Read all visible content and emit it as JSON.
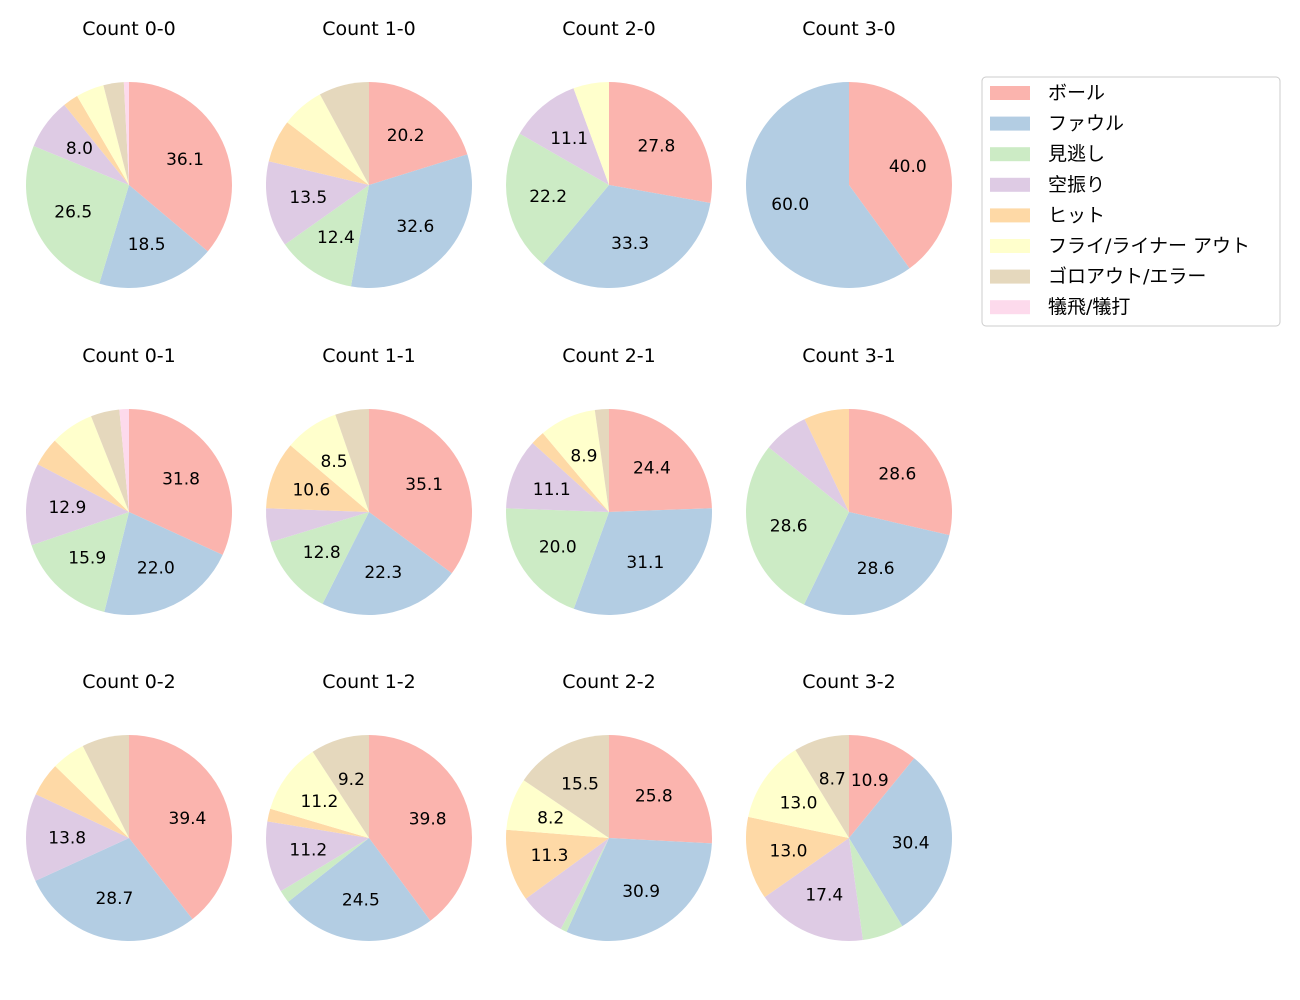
{
  "chart_data": {
    "type": "pie",
    "legend_position": "top-right",
    "label_format": "percent, one decimal, shown for slices of 8% or more",
    "start_angle": 90,
    "direction": "clockwise",
    "categories": [
      "ボール",
      "ファウル",
      "見逃し",
      "空振り",
      "ヒット",
      "フライ/ライナー アウト",
      "ゴロアウト/エラー",
      "犠飛/犠打"
    ],
    "colors": [
      "#fbb4ae",
      "#b3cde3",
      "#ccebc5",
      "#decbe4",
      "#fed9a6",
      "#ffffcc",
      "#e5d8bd",
      "#fddaec"
    ],
    "pies": [
      {
        "title": "Count 0-0",
        "values": [
          36.1,
          18.5,
          26.5,
          8.0,
          2.4,
          4.4,
          3.2,
          0.8
        ]
      },
      {
        "title": "Count 1-0",
        "values": [
          20.2,
          32.6,
          12.4,
          13.5,
          6.7,
          6.7,
          7.9,
          0
        ]
      },
      {
        "title": "Count 2-0",
        "values": [
          27.8,
          33.3,
          22.2,
          11.1,
          0,
          5.6,
          0,
          0
        ]
      },
      {
        "title": "Count 3-0",
        "values": [
          40.0,
          60.0,
          0,
          0,
          0,
          0,
          0,
          0
        ]
      },
      {
        "title": "Count 0-1",
        "values": [
          31.8,
          22.0,
          15.9,
          12.9,
          4.5,
          6.8,
          4.5,
          1.5
        ]
      },
      {
        "title": "Count 1-1",
        "values": [
          35.1,
          22.3,
          12.8,
          5.3,
          10.6,
          8.5,
          5.3,
          0
        ]
      },
      {
        "title": "Count 2-1",
        "values": [
          24.4,
          31.1,
          20.0,
          11.1,
          2.2,
          8.9,
          2.2,
          0
        ]
      },
      {
        "title": "Count 3-1",
        "values": [
          28.6,
          28.6,
          28.6,
          7.1,
          7.1,
          0,
          0,
          0
        ]
      },
      {
        "title": "Count 0-2",
        "values": [
          39.4,
          28.7,
          0,
          13.8,
          5.3,
          5.3,
          7.4,
          0
        ]
      },
      {
        "title": "Count 1-2",
        "values": [
          39.8,
          24.5,
          2.0,
          11.2,
          2.0,
          11.2,
          9.2,
          0
        ]
      },
      {
        "title": "Count 2-2",
        "values": [
          25.8,
          30.9,
          1.0,
          7.2,
          11.3,
          8.2,
          15.5,
          0
        ]
      },
      {
        "title": "Count 3-2",
        "values": [
          10.9,
          30.4,
          6.5,
          17.4,
          13.0,
          13.0,
          8.7,
          0
        ]
      }
    ]
  }
}
